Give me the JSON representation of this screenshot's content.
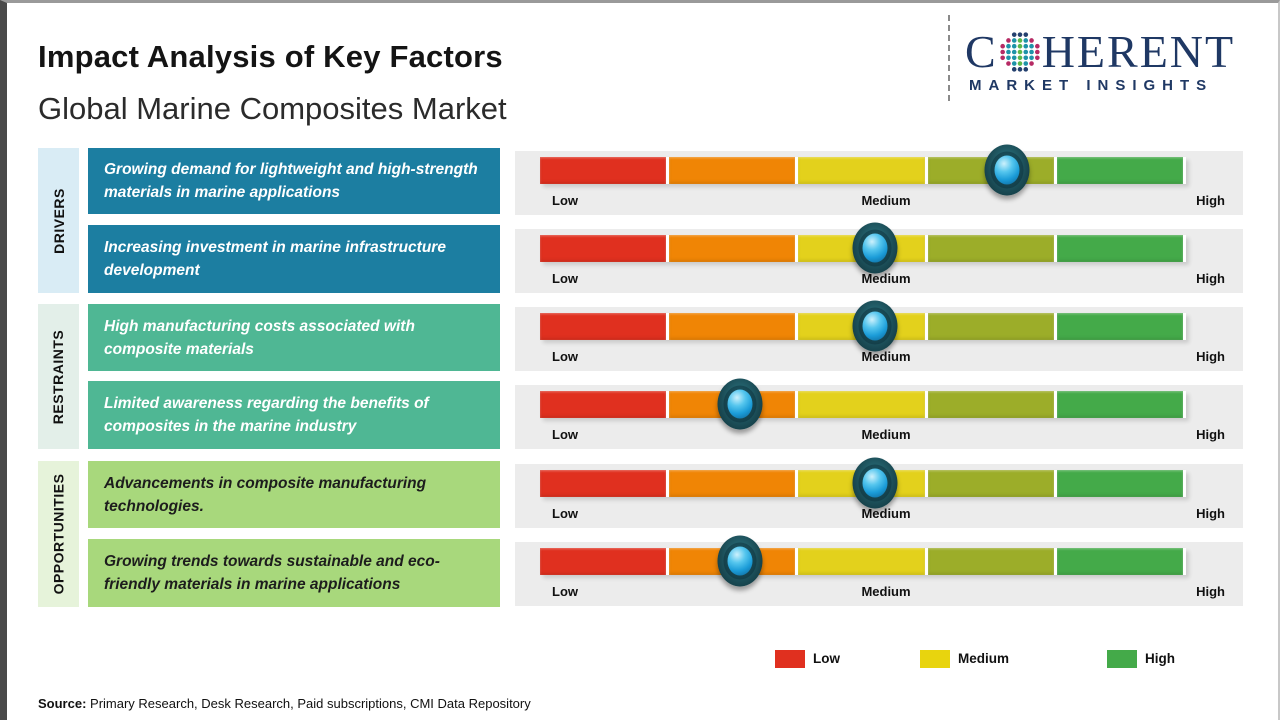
{
  "header": {
    "title": "Impact Analysis of Key Factors",
    "subtitle": "Global Marine Composites Market"
  },
  "logo": {
    "name_prefix": "C",
    "name_suffix": "HERENT",
    "tagline": "MARKET INSIGHTS",
    "brand_color": "#1f3864",
    "globe_icon": "dotted-globe-icon"
  },
  "categories": [
    {
      "label": "DRIVERS",
      "strip_bg": "#d9ecf5"
    },
    {
      "label": "RESTRAINTS",
      "strip_bg": "#e3efe9"
    },
    {
      "label": "OPPORTUNITIES",
      "strip_bg": "#e6f3da"
    }
  ],
  "scale_labels": {
    "low": "Low",
    "medium": "Medium",
    "high": "High"
  },
  "scale_colors": [
    "#e0301f",
    "#f08505",
    "#e3d11c",
    "#9cad29",
    "#44aa49"
  ],
  "factors": [
    {
      "category": "DRIVERS",
      "text": "Growing demand for lightweight and high-strength materials in marine applications",
      "box_bg": "#1c7ea1",
      "text_color": "#ffffff",
      "marker_pct": 72.3,
      "impact_level": "medium-high"
    },
    {
      "category": "DRIVERS",
      "text": "Increasing investment in marine infrastructure development",
      "box_bg": "#1c7ea1",
      "text_color": "#ffffff",
      "marker_pct": 51.9,
      "impact_level": "medium"
    },
    {
      "category": "RESTRAINTS",
      "text": "High manufacturing costs associated with composite materials",
      "box_bg": "#4fb794",
      "text_color": "#ffffff",
      "marker_pct": 51.9,
      "impact_level": "medium"
    },
    {
      "category": "RESTRAINTS",
      "text": "Limited awareness regarding the benefits of composites in the marine industry",
      "box_bg": "#4fb794",
      "text_color": "#ffffff",
      "marker_pct": 31.0,
      "impact_level": "low-medium"
    },
    {
      "category": "OPPORTUNITIES",
      "text": "Advancements in composite manufacturing technologies.",
      "box_bg": "#a8d87c",
      "text_color": "#1d1d1d",
      "marker_pct": 51.9,
      "impact_level": "medium"
    },
    {
      "category": "OPPORTUNITIES",
      "text": "Growing trends towards sustainable and eco-friendly materials in marine applications",
      "box_bg": "#a8d87c",
      "text_color": "#1d1d1d",
      "marker_pct": 31.0,
      "impact_level": "low-medium"
    }
  ],
  "legend": [
    {
      "label": "Low",
      "color": "#e0301f"
    },
    {
      "label": "Medium",
      "color": "#e8d40e"
    },
    {
      "label": "High",
      "color": "#44aa49"
    }
  ],
  "source": {
    "label": "Source:",
    "text": "Primary Research, Desk Research, Paid subscriptions, CMI Data Repository"
  },
  "chart_data": {
    "type": "bar",
    "title": "Impact Analysis of Key Factors",
    "subtitle": "Global Marine Composites Market",
    "scale": {
      "min_label": "Low",
      "mid_label": "Medium",
      "max_label": "High",
      "range": [
        0,
        1
      ]
    },
    "groups": [
      "Drivers",
      "Drivers",
      "Restraints",
      "Restraints",
      "Opportunities",
      "Opportunities"
    ],
    "categories": [
      "Growing demand for lightweight and high-strength materials in marine applications",
      "Increasing investment in marine infrastructure development",
      "High manufacturing costs associated with composite materials",
      "Limited awareness regarding the benefits of composites in the marine industry",
      "Advancements in composite manufacturing technologies.",
      "Growing trends towards sustainable and eco-friendly materials in marine applications"
    ],
    "series": [
      {
        "name": "Impact position (0=Low, 0.5=Medium, 1=High)",
        "values": [
          0.72,
          0.52,
          0.52,
          0.31,
          0.52,
          0.31
        ]
      }
    ],
    "legend_entries": [
      "Low",
      "Medium",
      "High"
    ],
    "legend_position": "bottom"
  }
}
